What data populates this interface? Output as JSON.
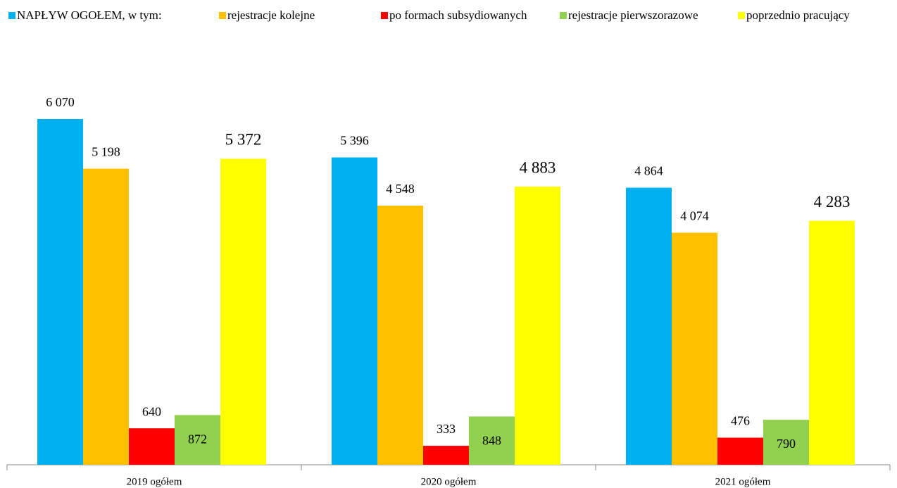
{
  "chart_data": {
    "type": "bar",
    "categories": [
      "2019 ogółem",
      "2020 ogółem",
      "2021 ogółem"
    ],
    "series": [
      {
        "name": "NAPŁYW OGOŁEM, w tym:",
        "color": "#00b0f0",
        "values": [
          6070,
          5396,
          4864
        ],
        "value_labels": [
          "6 070",
          "5 396",
          "4 864"
        ]
      },
      {
        "name": "rejestracje kolejne",
        "color": "#ffc000",
        "values": [
          5198,
          4548,
          4074
        ],
        "value_labels": [
          "5 198",
          "4 548",
          "4 074"
        ]
      },
      {
        "name": "po formach subsydiowanych",
        "color": "#ff0000",
        "values": [
          640,
          333,
          476
        ],
        "value_labels": [
          "640",
          "333",
          "476"
        ]
      },
      {
        "name": "rejestracje pierwszorazowe",
        "color": "#92d050",
        "values": [
          872,
          848,
          790
        ],
        "value_labels": [
          "872",
          "848",
          "790"
        ]
      },
      {
        "name": "poprzednio pracujący",
        "color": "#ffff00",
        "values": [
          5372,
          4883,
          4283
        ],
        "value_labels": [
          "5 372",
          "4 883",
          "4 283"
        ]
      }
    ]
  }
}
